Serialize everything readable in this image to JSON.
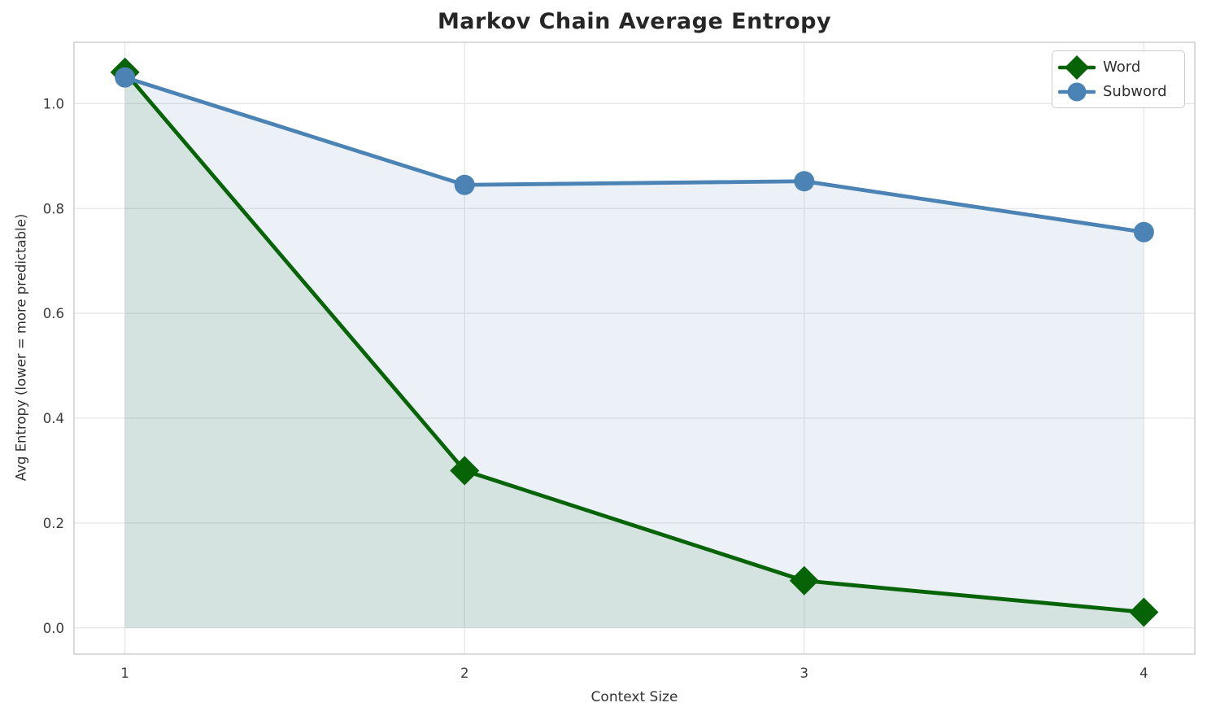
{
  "chart_data": {
    "type": "line",
    "title": "Markov Chain Average Entropy",
    "xlabel": "Context Size",
    "ylabel": "Avg Entropy (lower = more predictable)",
    "x": [
      1,
      2,
      3,
      4
    ],
    "xtick_labels": [
      "1",
      "2",
      "3",
      "4"
    ],
    "yticks": [
      0.0,
      0.2,
      0.4,
      0.6,
      0.8,
      1.0
    ],
    "ytick_labels": [
      "0.0",
      "0.2",
      "0.4",
      "0.6",
      "0.8",
      "1.0"
    ],
    "xlim": [
      0.85,
      4.15
    ],
    "ylim": [
      -0.05,
      1.117
    ],
    "grid": true,
    "legend_position": "upper right",
    "fill_baseline": 0.0,
    "series": [
      {
        "name": "Word",
        "marker": "diamond",
        "color": "#066406",
        "fill_opacity": 0.1,
        "values": [
          1.06,
          0.3,
          0.09,
          0.03
        ]
      },
      {
        "name": "Subword",
        "marker": "circle",
        "color": "#4b83b5",
        "fill_opacity": 0.11,
        "values": [
          1.05,
          0.845,
          0.852,
          0.755
        ]
      }
    ],
    "style": {
      "grid_color": "#e6e6e6",
      "spine_color": "#d2d2d2",
      "tick_label_color": "#3b3b3b",
      "title_color": "#262626",
      "line_width": 4.8
    }
  }
}
